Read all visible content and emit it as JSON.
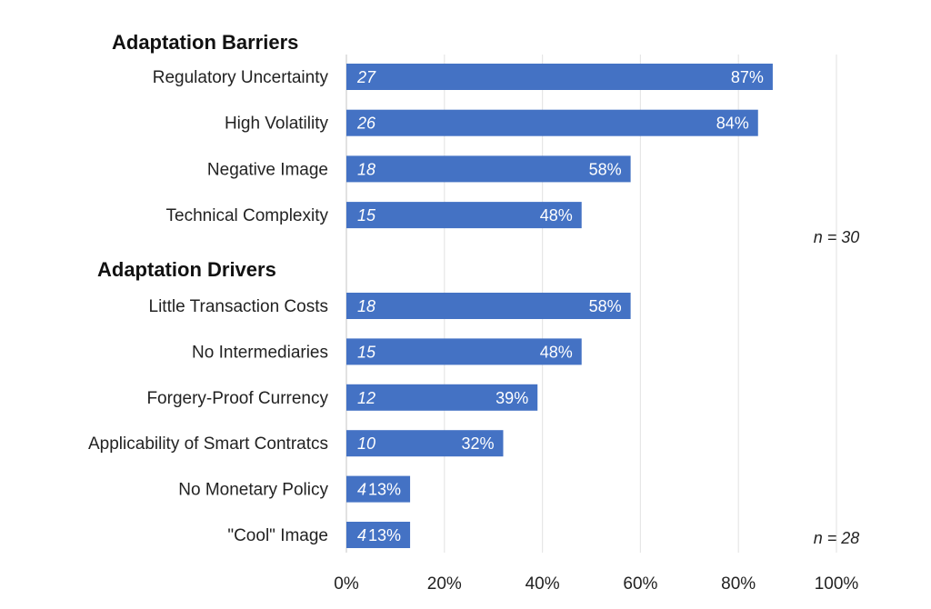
{
  "chart_data": {
    "type": "bar",
    "orientation": "horizontal",
    "bar_color": "#4472c4",
    "grid": true,
    "xlim": [
      0,
      100
    ],
    "xticks": [
      "0%",
      "20%",
      "40%",
      "60%",
      "80%",
      "100%"
    ],
    "groups": [
      {
        "title": "Adaptation Barriers",
        "n_label": "n = 30",
        "items": [
          {
            "label": "Regulatory Uncertainty",
            "count": "27",
            "value": 87,
            "pct_label": "87%"
          },
          {
            "label": "High Volatility",
            "count": "26",
            "value": 84,
            "pct_label": "84%"
          },
          {
            "label": "Negative Image",
            "count": "18",
            "value": 58,
            "pct_label": "58%"
          },
          {
            "label": "Technical Complexity",
            "count": "15",
            "value": 48,
            "pct_label": "48%"
          }
        ]
      },
      {
        "title": "Adaptation Drivers",
        "n_label": "n = 28",
        "items": [
          {
            "label": "Little Transaction Costs",
            "count": "18",
            "value": 58,
            "pct_label": "58%"
          },
          {
            "label": "No Intermediaries",
            "count": "15",
            "value": 48,
            "pct_label": "48%"
          },
          {
            "label": "Forgery-Proof Currency",
            "count": "12",
            "value": 39,
            "pct_label": "39%"
          },
          {
            "label": "Applicability of Smart Contratcs",
            "count": "10",
            "value": 32,
            "pct_label": "32%"
          },
          {
            "label": "No Monetary Policy",
            "count": "4",
            "value": 13,
            "pct_label": "13%"
          },
          {
            "label": "\"Cool\" Image",
            "count": "4",
            "value": 13,
            "pct_label": "13%"
          }
        ]
      }
    ]
  }
}
